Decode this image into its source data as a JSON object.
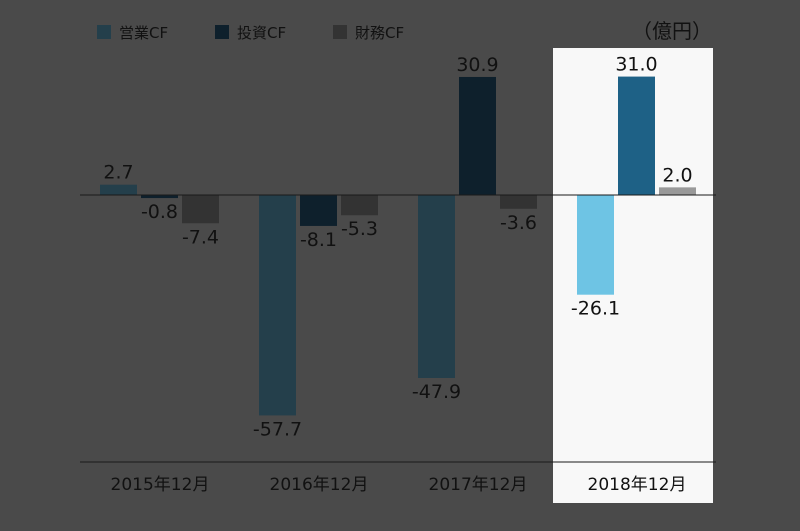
{
  "chart_data": {
    "type": "bar",
    "unit": "（億円）",
    "categories": [
      "2015年12月",
      "2016年12月",
      "2017年12月",
      "2018年12月"
    ],
    "highlight_category": "2018年12月",
    "series": [
      {
        "name": "営業CF",
        "values": [
          2.7,
          -57.7,
          -47.9,
          -26.1
        ],
        "labels": [
          "2.7",
          "-57.7",
          "-47.9",
          "-26.1"
        ],
        "color": "#243f4b",
        "highlight_color": "#6ec4e4"
      },
      {
        "name": "投資CF",
        "values": [
          -0.8,
          -8.1,
          30.9,
          31.0
        ],
        "labels": [
          "-0.8",
          "-8.1",
          "30.9",
          "31.0"
        ],
        "color": "#0e202c",
        "highlight_color": "#1e6186"
      },
      {
        "name": "財務CF",
        "values": [
          -7.4,
          -5.3,
          -3.6,
          2.0
        ],
        "labels": [
          "-7.4",
          "-5.3",
          "-3.6",
          "2.0"
        ],
        "color": "#333333",
        "highlight_color": "#999999"
      }
    ],
    "legend_position": "top-left",
    "grid": false
  },
  "colors": {
    "background": "#4a4a4a",
    "highlight_panel": "#f8f8f8",
    "axis_line": "#1a1a1a",
    "text": "#111111"
  }
}
